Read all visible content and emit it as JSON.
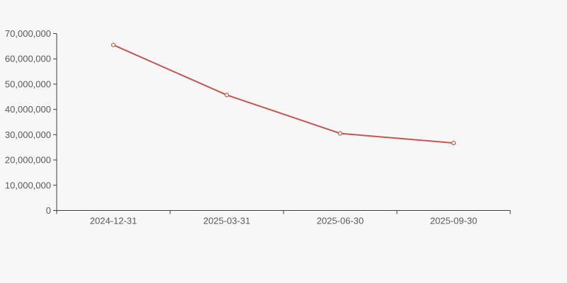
{
  "chart_data": {
    "type": "line",
    "title": "",
    "xlabel": "",
    "ylabel": "",
    "categories": [
      "2024-12-31",
      "2025-03-31",
      "2025-06-30",
      "2025-09-30"
    ],
    "series": [
      {
        "name": "series-1",
        "values": [
          65500000,
          45700000,
          30500000,
          26700000
        ]
      }
    ],
    "ylim": [
      0,
      70000000
    ],
    "y_tick_step": 10000000,
    "y_tick_labels": [
      "0",
      "10,000,000",
      "20,000,000",
      "30,000,000",
      "40,000,000",
      "50,000,000",
      "60,000,000",
      "70,000,000"
    ],
    "grid": false,
    "legend_position": "none",
    "colors": {
      "background": "#f7f7f7",
      "line": "#c4554f",
      "marker_fill": "#ffffff",
      "axis": "#3e3e3e",
      "tick_label": "#595959"
    },
    "marker": "hollow-circle"
  }
}
